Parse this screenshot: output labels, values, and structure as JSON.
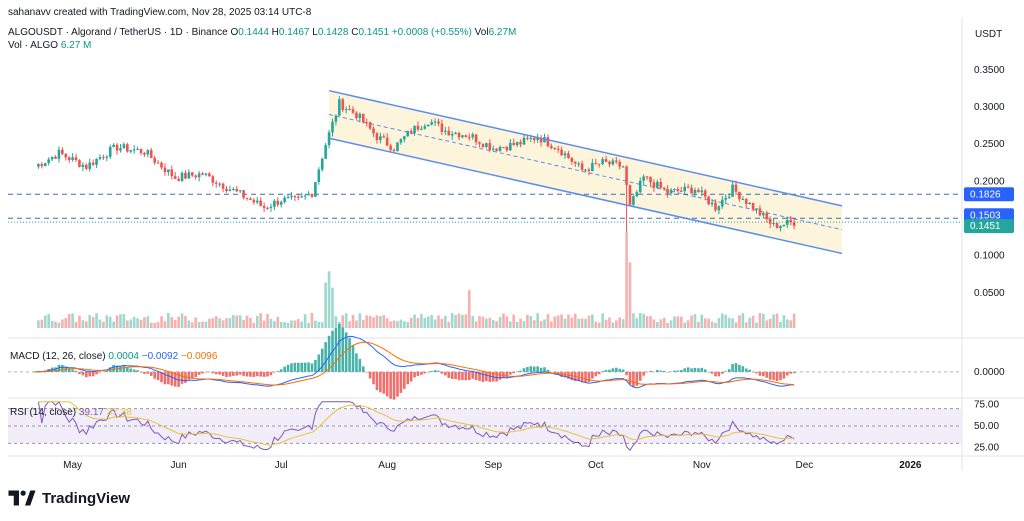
{
  "header": {
    "credit": "sahanavv created with TradingView.com, Nov 28, 2025 03:14 UTC-8",
    "symbol": "ALGOUSDT · Algorand / TetherUS · 1D · Binance",
    "o_label": "O",
    "o": "0.1444",
    "h_label": "H",
    "h": "0.1467",
    "l_label": "L",
    "l": "0.1428",
    "c_label": "C",
    "c": "0.1451",
    "change": "+0.0008 (+0.55%)",
    "vol_label": "Vol",
    "vol": "6.27M",
    "vol_row_label": "Vol · ALGO",
    "vol_row_value": "6.27 M"
  },
  "currency": "USDT",
  "macd": {
    "label": "MACD (12, 26, close)",
    "hist": "0.0004",
    "macd": "−0.0092",
    "signal": "−0.0096"
  },
  "rsi": {
    "label": "RSI (14, close)",
    "value": "39.17",
    "ma": "37.38"
  },
  "brand": "TradingView",
  "colors": {
    "up": "#26a69a",
    "down": "#ef5350",
    "channel": "#5b8def",
    "channel_fill": "#fdf3d8",
    "macd": "#2962ff",
    "signal": "#ff6d00",
    "rsi": "#7e57c2",
    "rsi_ma": "#e8c13b"
  },
  "chart_data": {
    "type": "candlestick",
    "x_ticks": [
      "May",
      "Jun",
      "Jul",
      "Aug",
      "Sep",
      "Oct",
      "Nov",
      "Dec",
      "2026"
    ],
    "y_ticks": [
      "0.3500",
      "0.3000",
      "0.2500",
      "0.2000",
      "0.1500",
      "0.1000",
      "0.0500"
    ],
    "ylim": [
      0.0,
      0.37
    ],
    "price_levels": [
      {
        "label": "0.1826",
        "value": 0.1826,
        "style": "dashed"
      },
      {
        "label": "0.1503",
        "value": 0.1503,
        "style": "dashed"
      },
      {
        "label": "0.1451",
        "value": 0.1451,
        "style": "dotted"
      }
    ],
    "channel": {
      "upper": [
        [
          "Jul 15",
          0.322
        ],
        [
          "Dec 12",
          0.167
        ]
      ],
      "lower": [
        [
          "Jul 15",
          0.258
        ],
        [
          "Dec 12",
          0.103
        ]
      ]
    },
    "price_anchors": [
      [
        "Apr 20",
        0.22
      ],
      [
        "Apr 27",
        0.238
      ],
      [
        "May 5",
        0.22
      ],
      [
        "May 10",
        0.236
      ],
      [
        "May 14",
        0.246
      ],
      [
        "May 22",
        0.24
      ],
      [
        "May 31",
        0.205
      ],
      [
        "Jun 8",
        0.21
      ],
      [
        "Jun 20",
        0.18
      ],
      [
        "Jun 26",
        0.165
      ],
      [
        "Jul 1",
        0.175
      ],
      [
        "Jul 6",
        0.174
      ],
      [
        "Jul 10",
        0.185
      ],
      [
        "Jul 14",
        0.25
      ],
      [
        "Jul 18",
        0.305
      ],
      [
        "Jul 23",
        0.29
      ],
      [
        "Jul 29",
        0.26
      ],
      [
        "Aug 3",
        0.245
      ],
      [
        "Aug 8",
        0.268
      ],
      [
        "Aug 13",
        0.282
      ],
      [
        "Aug 18",
        0.268
      ],
      [
        "Aug 25",
        0.262
      ],
      [
        "Sep 1",
        0.245
      ],
      [
        "Sep 8",
        0.25
      ],
      [
        "Sep 14",
        0.26
      ],
      [
        "Sep 20",
        0.245
      ],
      [
        "Sep 27",
        0.215
      ],
      [
        "Oct 3",
        0.225
      ],
      [
        "Oct 9",
        0.22
      ],
      [
        "Oct 11",
        0.165
      ],
      [
        "Oct 15",
        0.205
      ],
      [
        "Oct 22",
        0.185
      ],
      [
        "Oct 30",
        0.19
      ],
      [
        "Nov 5",
        0.165
      ],
      [
        "Nov 10",
        0.19
      ],
      [
        "Nov 16",
        0.165
      ],
      [
        "Nov 22",
        0.14
      ],
      [
        "Nov 28",
        0.1451
      ]
    ],
    "volume_ylim": [
      0,
      600
    ],
    "volume_spikes": [
      [
        "Jul 14",
        180
      ],
      [
        "Jul 15",
        225
      ],
      [
        "Jul 16",
        160
      ],
      [
        "Oct 10",
        380
      ],
      [
        "Oct 11",
        260
      ],
      [
        "Aug 25",
        150
      ]
    ],
    "macd_range": [
      -0.02,
      0.025
    ],
    "rsi_levels": [
      "75.00",
      "50.00",
      "25.00"
    ]
  }
}
